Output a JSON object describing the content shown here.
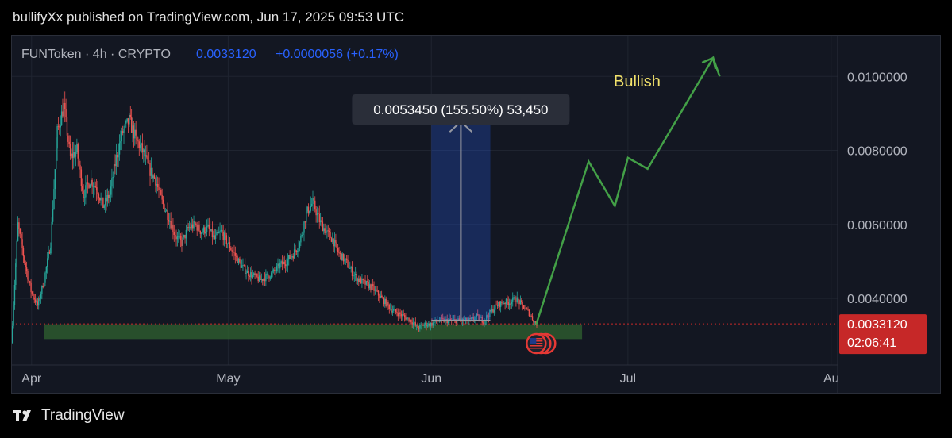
{
  "header": {
    "published": "bullifyXx published on TradingView.com, Jun 17, 2025 09:53 UTC"
  },
  "symbol_bar": {
    "symbol": "FUNToken · 4h · CRYPTO",
    "price": "0.0033120",
    "change": "+0.0000056 (+0.17%)"
  },
  "footer": {
    "brand": "TradingView"
  },
  "colors": {
    "background": "#131722",
    "up_candle": "#26a69a",
    "down_candle": "#ef5350",
    "price_label_bg": "#c62828",
    "projection": "#43a047",
    "bullish_text": "#f2e26b",
    "measure_box": "#2962ff",
    "support_zone": "#2e5e2f"
  },
  "chart_data": {
    "type": "candlestick",
    "title": "FUNToken · 4h · CRYPTO",
    "xlabel": "",
    "ylabel": "",
    "x_ticks": [
      "Apr",
      "May",
      "Jun",
      "Jul",
      "Au"
    ],
    "x_tick_dates": [
      "2025-04-01",
      "2025-05-01",
      "2025-06-01",
      "2025-07-01",
      "2025-08-01"
    ],
    "x_range": [
      "2025-03-29",
      "2025-08-02"
    ],
    "y_ticks": [
      "0.0100000",
      "0.0080000",
      "0.0060000",
      "0.0040000"
    ],
    "y_tick_values": [
      0.01,
      0.008,
      0.006,
      0.004
    ],
    "y_range": [
      0.0022,
      0.0111
    ],
    "grid": true,
    "price_path": [
      [
        "2025-03-29",
        0.0028
      ],
      [
        "2025-03-30",
        0.006
      ],
      [
        "2025-03-31",
        0.005
      ],
      [
        "2025-04-01",
        0.0042
      ],
      [
        "2025-04-02",
        0.0038
      ],
      [
        "2025-04-03",
        0.0045
      ],
      [
        "2025-04-04",
        0.0055
      ],
      [
        "2025-04-05",
        0.0085
      ],
      [
        "2025-04-06",
        0.0092
      ],
      [
        "2025-04-07",
        0.0078
      ],
      [
        "2025-04-08",
        0.008
      ],
      [
        "2025-04-09",
        0.0068
      ],
      [
        "2025-04-10",
        0.0072
      ],
      [
        "2025-04-11",
        0.007
      ],
      [
        "2025-04-12",
        0.0065
      ],
      [
        "2025-04-13",
        0.0068
      ],
      [
        "2025-04-14",
        0.0078
      ],
      [
        "2025-04-15",
        0.0085
      ],
      [
        "2025-04-16",
        0.0088
      ],
      [
        "2025-04-17",
        0.0083
      ],
      [
        "2025-04-18",
        0.008
      ],
      [
        "2025-04-19",
        0.0075
      ],
      [
        "2025-04-20",
        0.0072
      ],
      [
        "2025-04-21",
        0.0066
      ],
      [
        "2025-04-22",
        0.0062
      ],
      [
        "2025-04-23",
        0.0057
      ],
      [
        "2025-04-24",
        0.0055
      ],
      [
        "2025-04-25",
        0.0059
      ],
      [
        "2025-04-26",
        0.006
      ],
      [
        "2025-04-27",
        0.0058
      ],
      [
        "2025-04-28",
        0.0059
      ],
      [
        "2025-04-29",
        0.0056
      ],
      [
        "2025-04-30",
        0.0058
      ],
      [
        "2025-05-01",
        0.0055
      ],
      [
        "2025-05-02",
        0.0052
      ],
      [
        "2025-05-03",
        0.0049
      ],
      [
        "2025-05-04",
        0.0047
      ],
      [
        "2025-05-05",
        0.0046
      ],
      [
        "2025-05-06",
        0.0045
      ],
      [
        "2025-05-07",
        0.0046
      ],
      [
        "2025-05-08",
        0.0047
      ],
      [
        "2025-05-09",
        0.0049
      ],
      [
        "2025-05-10",
        0.005
      ],
      [
        "2025-05-11",
        0.0052
      ],
      [
        "2025-05-12",
        0.0055
      ],
      [
        "2025-05-13",
        0.0063
      ],
      [
        "2025-05-14",
        0.0066
      ],
      [
        "2025-05-15",
        0.0061
      ],
      [
        "2025-05-16",
        0.0058
      ],
      [
        "2025-05-17",
        0.0056
      ],
      [
        "2025-05-18",
        0.0052
      ],
      [
        "2025-05-19",
        0.005
      ],
      [
        "2025-05-20",
        0.0047
      ],
      [
        "2025-05-21",
        0.0045
      ],
      [
        "2025-05-22",
        0.0044
      ],
      [
        "2025-05-23",
        0.0043
      ],
      [
        "2025-05-24",
        0.0041
      ],
      [
        "2025-05-25",
        0.0039
      ],
      [
        "2025-05-26",
        0.0037
      ],
      [
        "2025-05-27",
        0.0036
      ],
      [
        "2025-05-28",
        0.0035
      ],
      [
        "2025-05-29",
        0.0034
      ],
      [
        "2025-05-30",
        0.0032
      ],
      [
        "2025-05-31",
        0.0033
      ],
      [
        "2025-06-01",
        0.0033
      ],
      [
        "2025-06-02",
        0.0034
      ],
      [
        "2025-06-03",
        0.0034
      ],
      [
        "2025-06-04",
        0.0034
      ],
      [
        "2025-06-05",
        0.0034
      ],
      [
        "2025-06-06",
        0.0034
      ],
      [
        "2025-06-07",
        0.0034
      ],
      [
        "2025-06-08",
        0.0035
      ],
      [
        "2025-06-09",
        0.0034
      ],
      [
        "2025-06-10",
        0.0036
      ],
      [
        "2025-06-11",
        0.0038
      ],
      [
        "2025-06-12",
        0.0039
      ],
      [
        "2025-06-13",
        0.0039
      ],
      [
        "2025-06-14",
        0.004
      ],
      [
        "2025-06-15",
        0.0038
      ],
      [
        "2025-06-16",
        0.0036
      ],
      [
        "2025-06-17",
        0.003312
      ]
    ],
    "current_price": {
      "value": "0.0033120",
      "countdown": "02:06:41"
    },
    "support_zone": {
      "from": "2025-03-29",
      "to": "2025-06-24",
      "low": 0.0029,
      "high": 0.0033
    },
    "measurement": {
      "label": "0.0053450 (155.50%) 53,450",
      "from_date": "2025-06-01",
      "to_date": "2025-06-10",
      "low": 0.0034,
      "high": 0.0088
    },
    "projection": {
      "label": "Bullish",
      "path": [
        [
          "2025-06-17",
          0.0033
        ],
        [
          "2025-06-25",
          0.0077
        ],
        [
          "2025-06-29",
          0.0065
        ],
        [
          "2025-07-01",
          0.0078
        ],
        [
          "2025-07-04",
          0.0075
        ],
        [
          "2025-07-14",
          0.0105
        ],
        [
          "2025-07-15",
          0.01
        ]
      ]
    }
  }
}
